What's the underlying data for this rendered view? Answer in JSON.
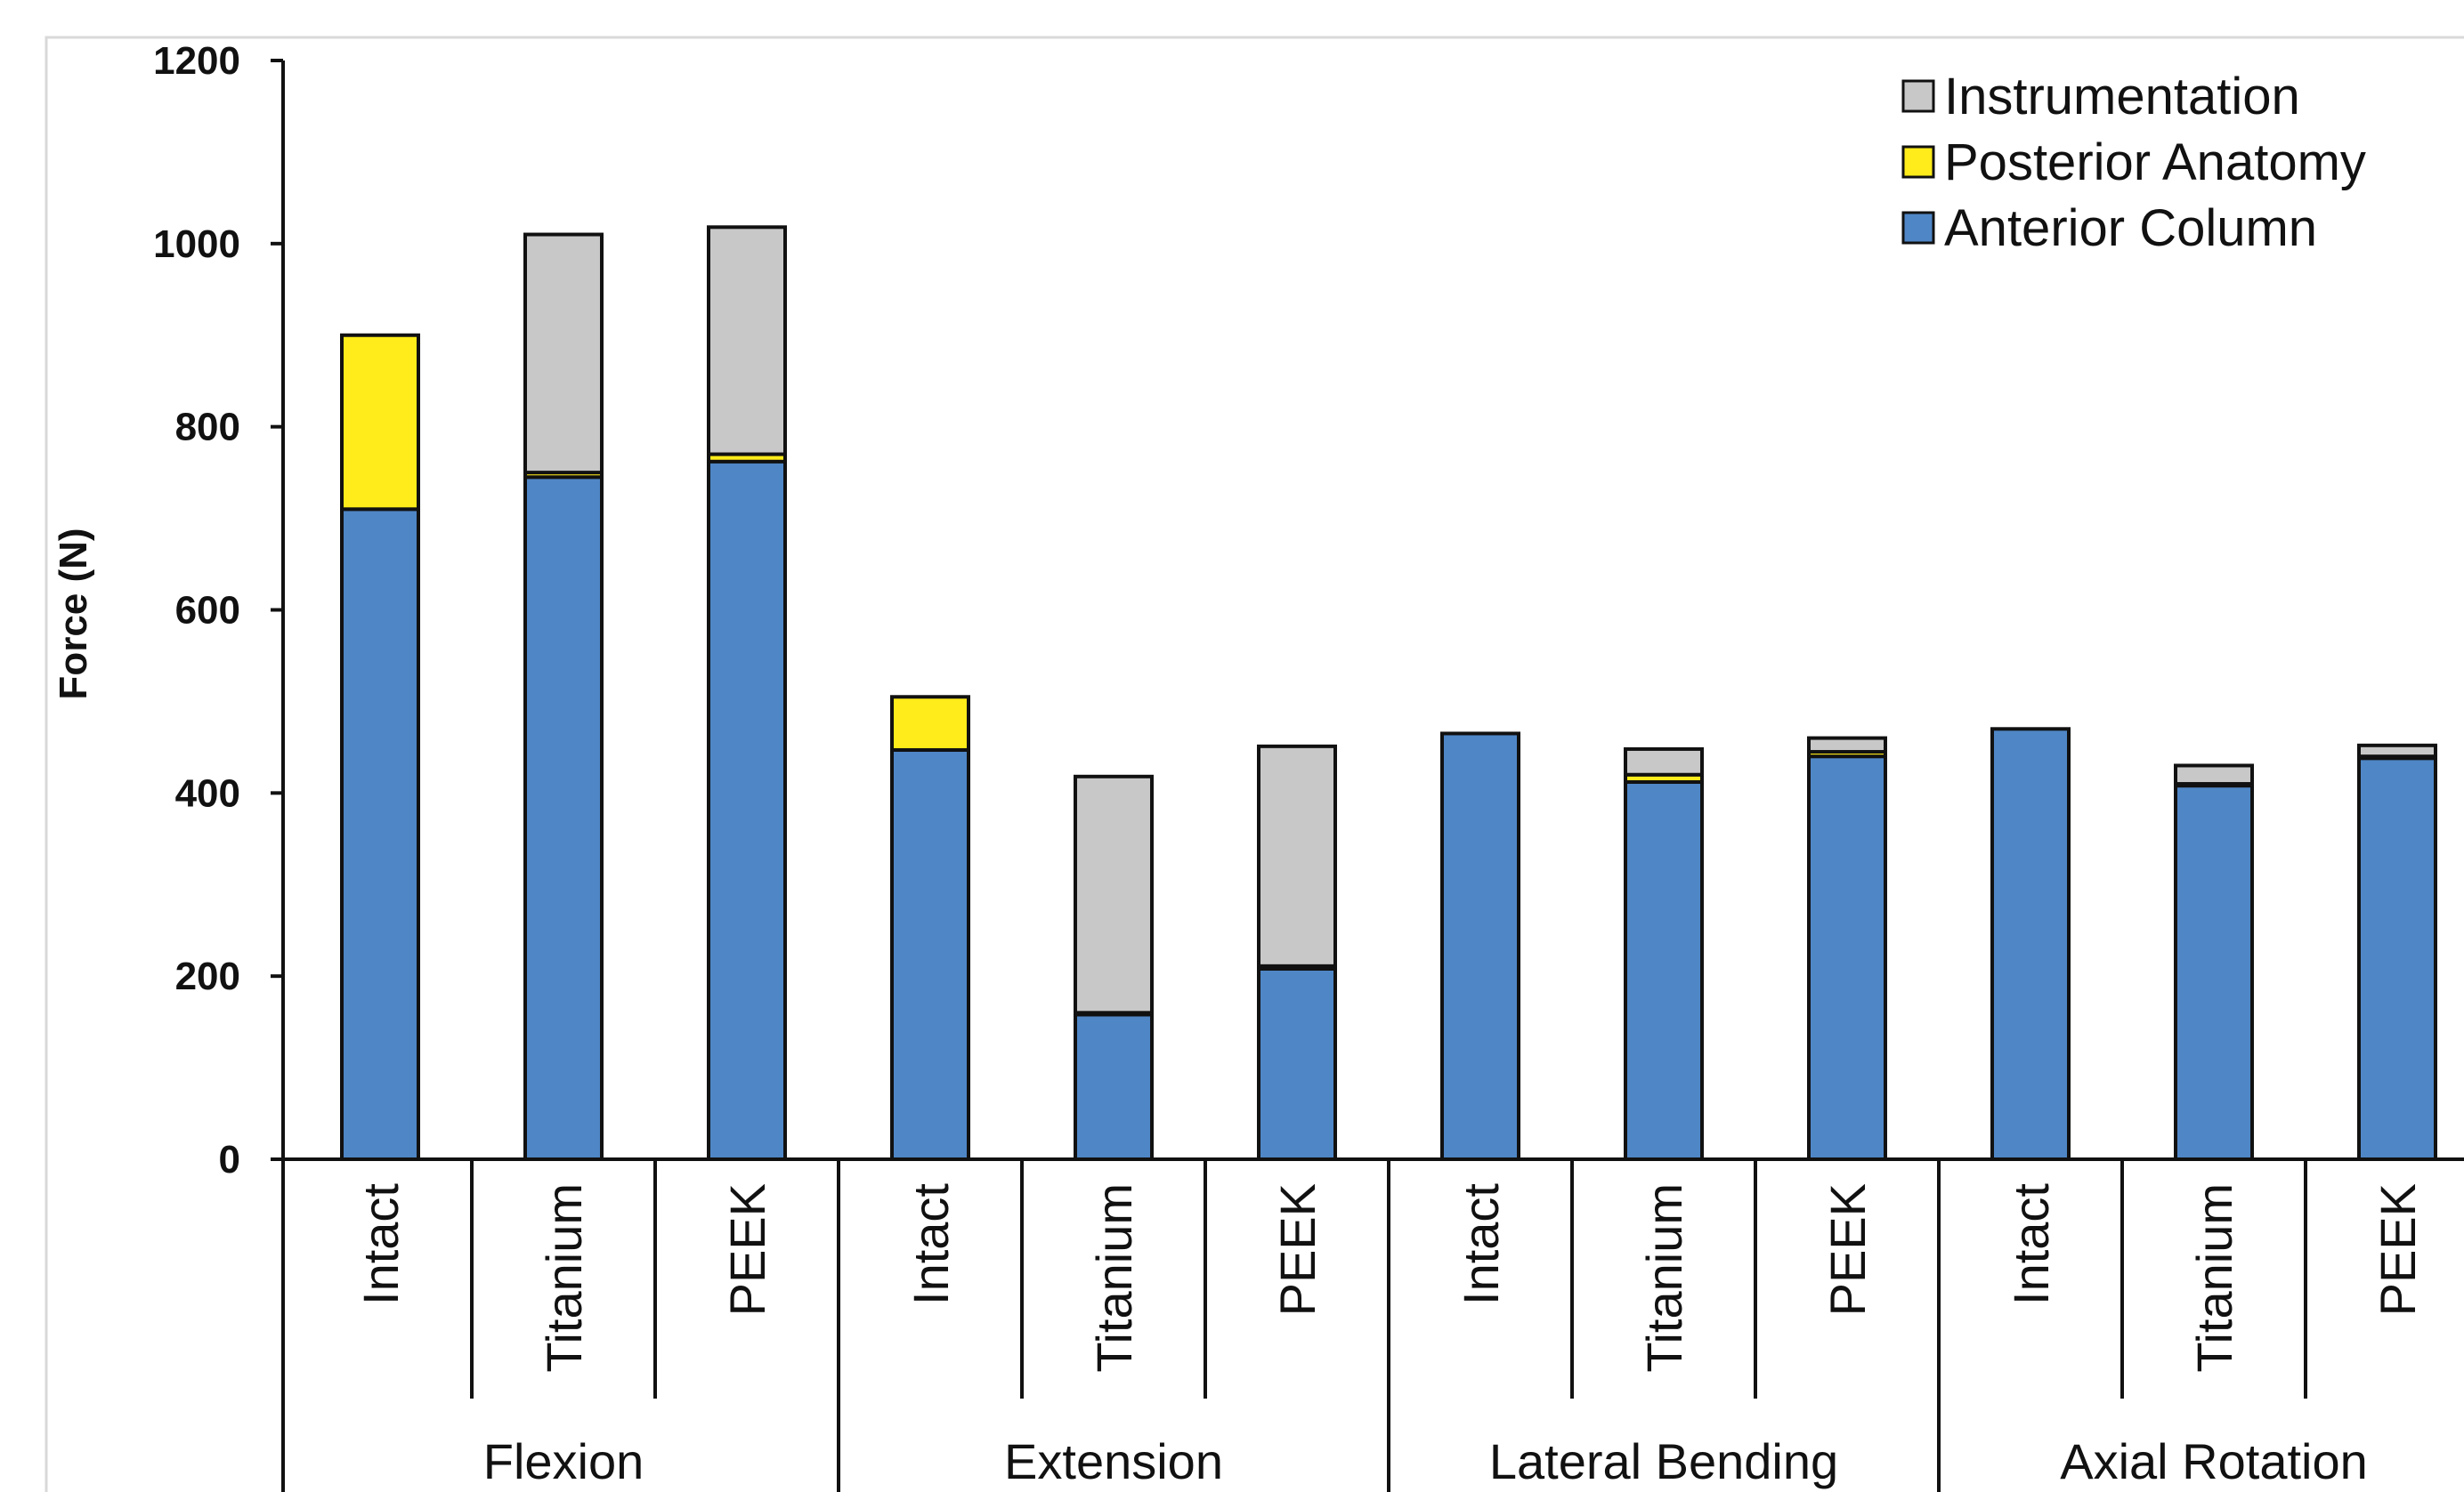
{
  "chart_data": {
    "type": "bar",
    "stacked": true,
    "ylabel": "Force (N)",
    "ylim": [
      0,
      1200
    ],
    "yticks": [
      0,
      200,
      400,
      600,
      800,
      1000,
      1200
    ],
    "groups": [
      "Flexion",
      "Extension",
      "Lateral Bending",
      "Axial Rotation"
    ],
    "categories": [
      "Intact",
      "Titanium",
      "PEEK",
      "Intact",
      "Titanium",
      "PEEK",
      "Intact",
      "Titanium",
      "PEEK",
      "Intact",
      "Titanium",
      "PEEK"
    ],
    "category_group": [
      0,
      0,
      0,
      1,
      1,
      1,
      2,
      2,
      2,
      3,
      3,
      3
    ],
    "series": [
      {
        "name": "Anterior Column",
        "color": "#4f86c6",
        "values": [
          710,
          745,
          762,
          447,
          158,
          208,
          465,
          412,
          440,
          470,
          408,
          438
        ]
      },
      {
        "name": "Posterior Anatomy",
        "color": "#ffec1a",
        "values": [
          190,
          5,
          8,
          58,
          2,
          3,
          0,
          8,
          5,
          0,
          2,
          2
        ]
      },
      {
        "name": "Instrumentation",
        "color": "#c8c8c8",
        "values": [
          0,
          260,
          248,
          0,
          258,
          240,
          0,
          28,
          15,
          0,
          20,
          12
        ]
      }
    ],
    "legend": {
      "position": "top-right",
      "order": [
        "Instrumentation",
        "Posterior Anatomy",
        "Anterior Column"
      ]
    },
    "grid": false
  }
}
